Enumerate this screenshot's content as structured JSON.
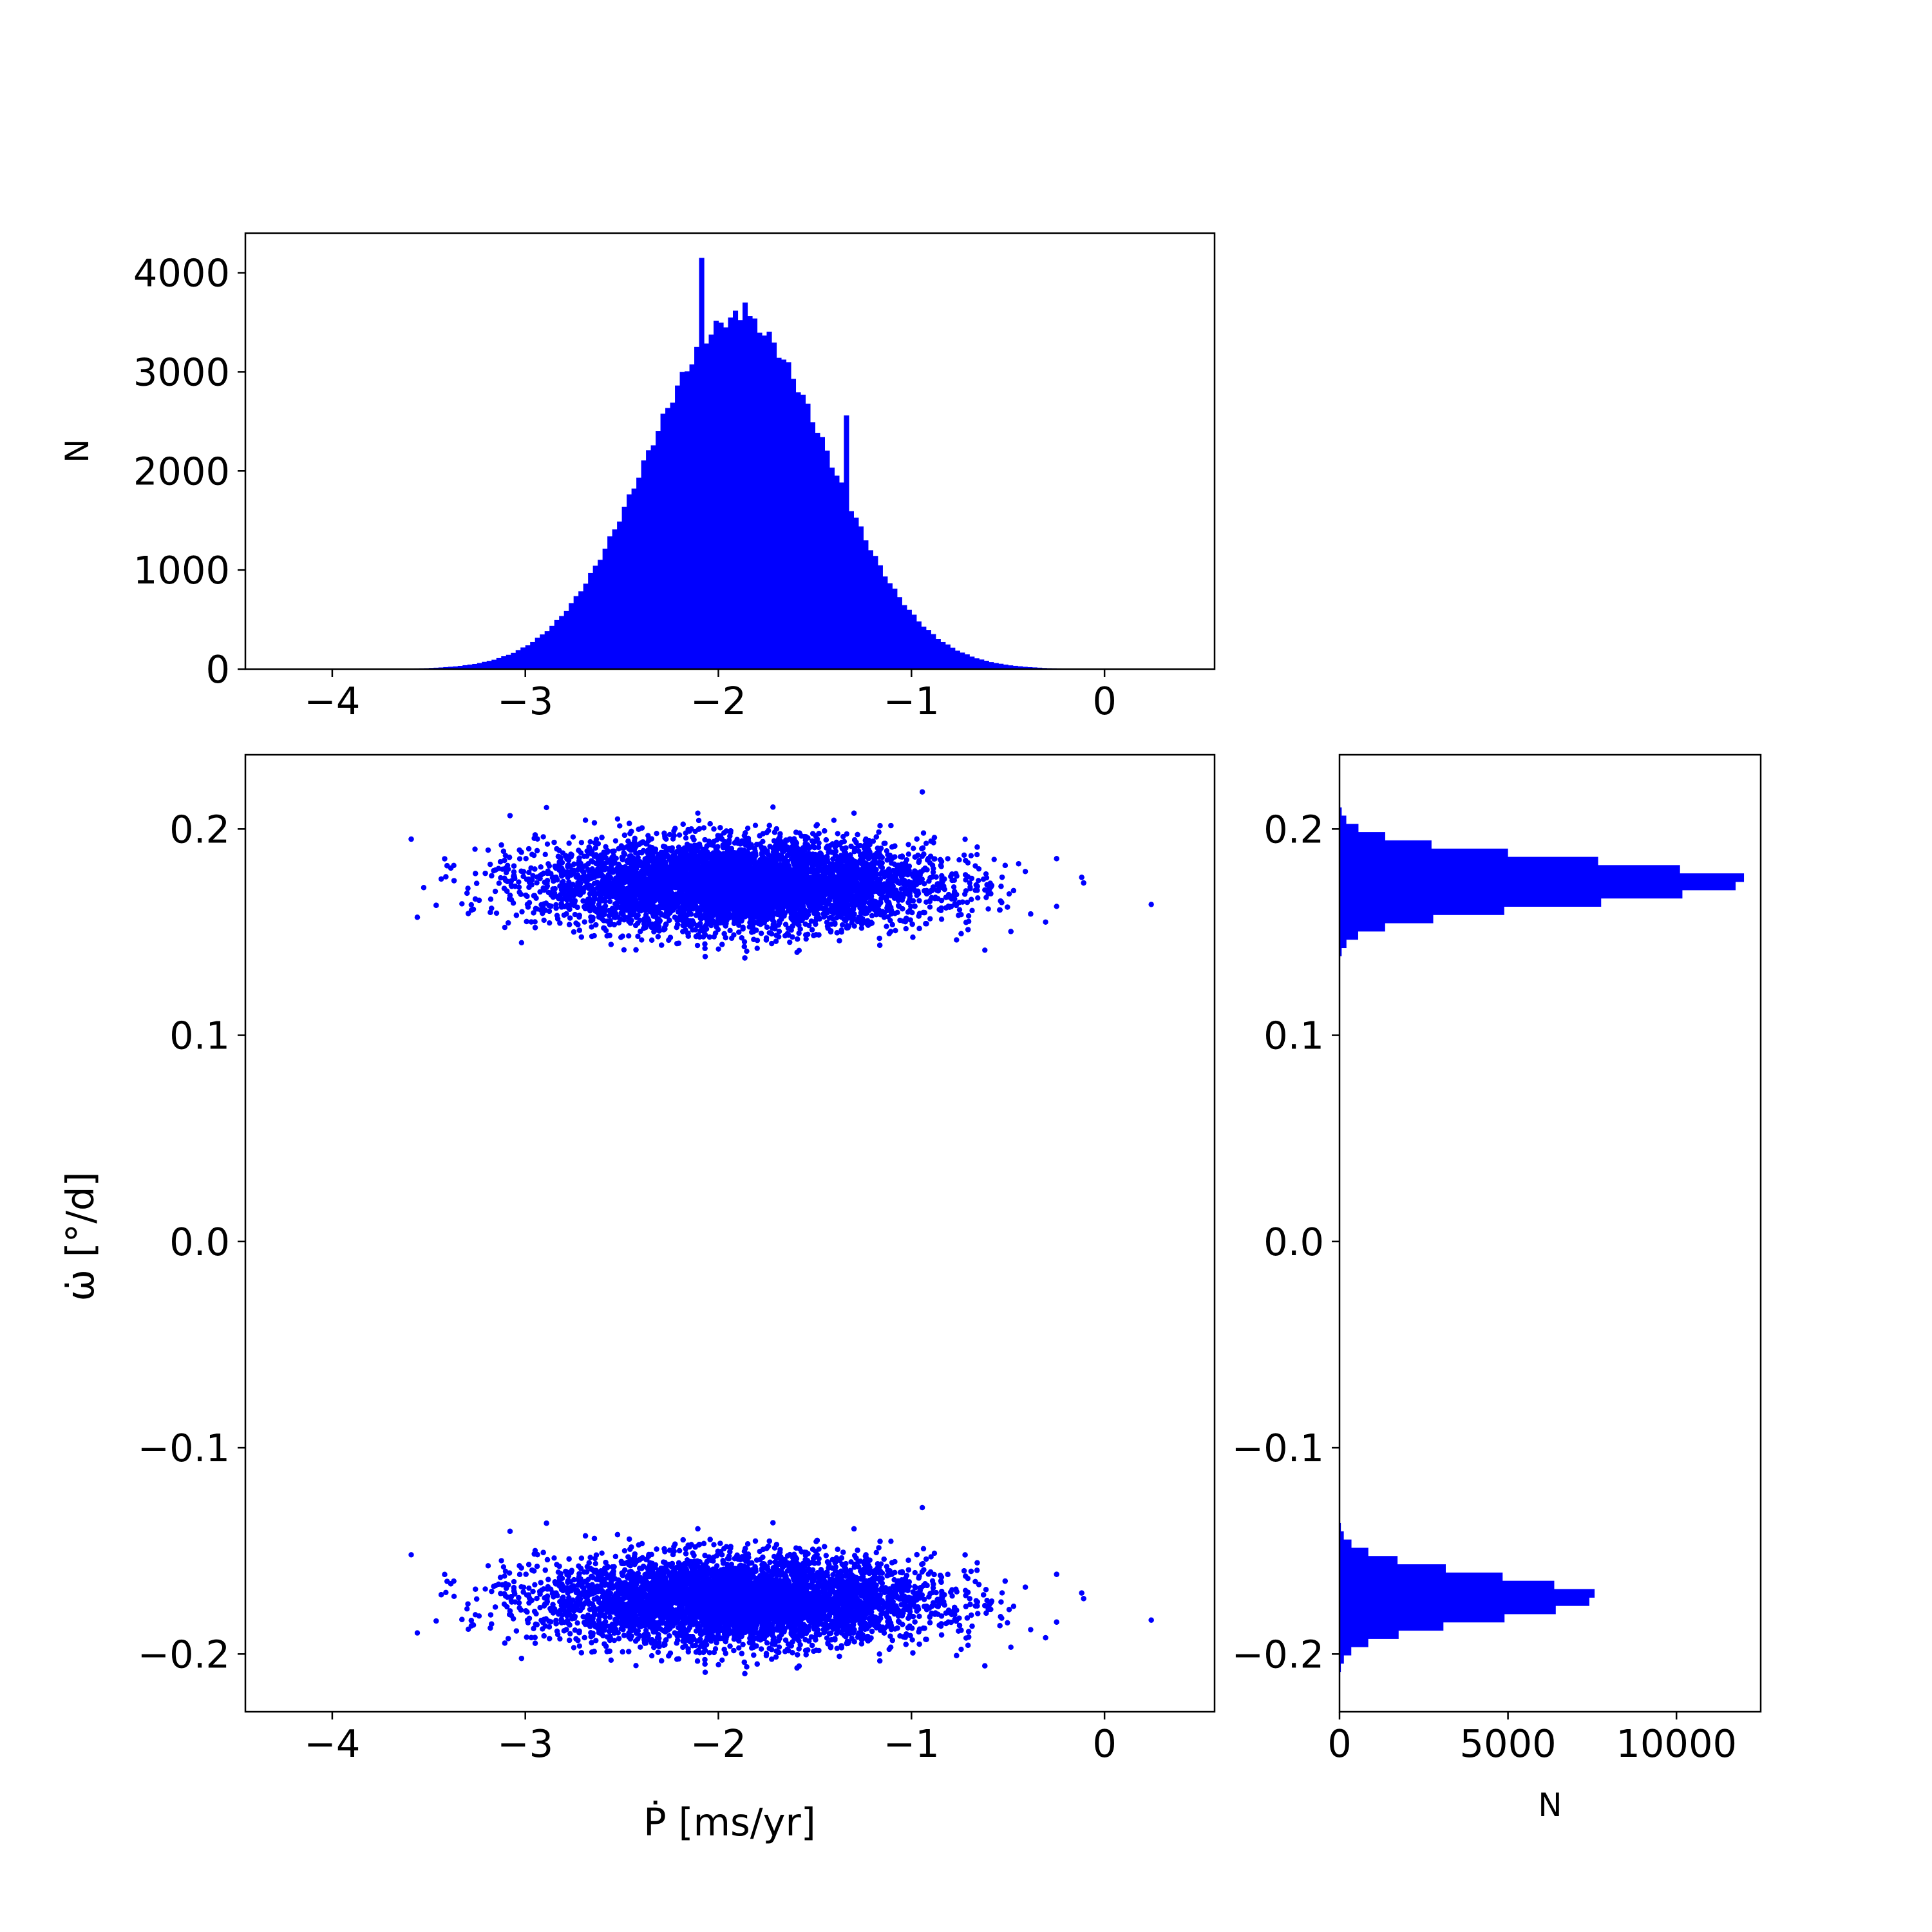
{
  "colors": {
    "series": "#0000ff",
    "axes": "#000000",
    "background": "#ffffff"
  },
  "chart_data": [
    {
      "id": "top-histogram",
      "type": "bar",
      "title": "",
      "xlabel": "",
      "ylabel": "N",
      "xlim": [
        -4.45,
        0.57
      ],
      "ylim": [
        0,
        4400
      ],
      "xticks": [
        -4,
        -3,
        -2,
        -1,
        0
      ],
      "xtick_labels": [
        "−4",
        "−3",
        "−2",
        "−1",
        "0"
      ],
      "yticks": [
        0,
        1000,
        2000,
        3000,
        4000
      ],
      "ytick_labels": [
        "0",
        "1000",
        "2000",
        "3000",
        "4000"
      ],
      "grid": false,
      "distribution": {
        "mean": -1.9,
        "std": 0.47,
        "peak": 3550
      },
      "spikes": [
        {
          "x": -2.09,
          "value": 4150
        },
        {
          "x": -1.35,
          "value": 2560
        },
        {
          "x": -1.87,
          "value": 3700
        }
      ]
    },
    {
      "id": "main-scatter",
      "type": "scatter",
      "title": "",
      "xlabel": "Ṗ [ms/yr]",
      "ylabel": "ω̇ [°/d]",
      "xlim": [
        -4.45,
        0.57
      ],
      "ylim": [
        -0.228,
        0.236
      ],
      "xticks": [
        -4,
        -3,
        -2,
        -1,
        0
      ],
      "xtick_labels": [
        "−4",
        "−3",
        "−2",
        "−1",
        "0"
      ],
      "yticks": [
        0.2,
        0.1,
        0.0,
        -0.1,
        -0.2
      ],
      "ytick_labels": [
        "0.2",
        "0.1",
        "0.0",
        "−0.1",
        "−0.2"
      ],
      "grid": false,
      "clusters": [
        {
          "x_mean": -1.9,
          "x_std": 0.5,
          "y_mean": 0.173,
          "y_std": 0.0105,
          "count": 9000
        },
        {
          "x_mean": -1.9,
          "x_std": 0.5,
          "y_mean": -0.174,
          "y_std": 0.0105,
          "count": 9000
        }
      ]
    },
    {
      "id": "right-histogram",
      "type": "bar",
      "orientation": "horizontal",
      "title": "",
      "xlabel": "N",
      "ylabel": "",
      "xlim": [
        0,
        12500
      ],
      "ylim": [
        -0.228,
        0.236
      ],
      "xticks": [
        0,
        5000,
        10000
      ],
      "xtick_labels": [
        "0",
        "5000",
        "10000"
      ],
      "yticks": [
        0.2,
        0.1,
        0.0,
        -0.1,
        -0.2
      ],
      "ytick_labels": [
        "0.2",
        "0.1",
        "0.0",
        "−0.1",
        "−0.2"
      ],
      "grid": false,
      "modes": [
        {
          "y_mean": 0.1745,
          "y_std": 0.0105,
          "peak": 12050
        },
        {
          "y_mean": -0.1725,
          "y_std": 0.0105,
          "peak": 7600
        }
      ]
    }
  ]
}
